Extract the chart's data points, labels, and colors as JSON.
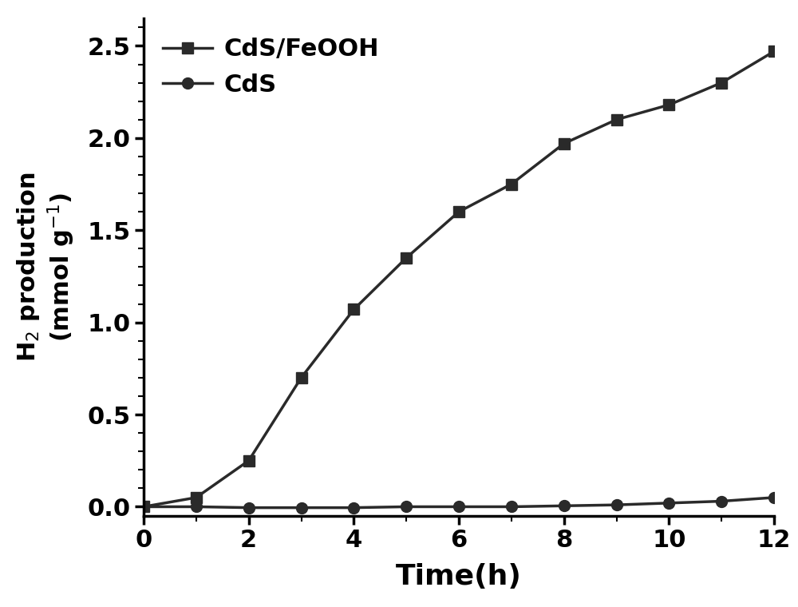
{
  "cds_feooh_x": [
    0,
    1,
    2,
    3,
    4,
    5,
    6,
    7,
    8,
    9,
    10,
    11,
    12
  ],
  "cds_feooh_y": [
    0.0,
    0.05,
    0.25,
    0.7,
    1.07,
    1.35,
    1.6,
    1.75,
    1.97,
    2.1,
    2.18,
    2.3,
    2.47
  ],
  "cds_x": [
    0,
    1,
    2,
    3,
    4,
    5,
    6,
    7,
    8,
    9,
    10,
    11,
    12
  ],
  "cds_y": [
    0.0,
    0.0,
    -0.005,
    -0.005,
    -0.005,
    0.0,
    0.0,
    0.0,
    0.005,
    0.01,
    0.02,
    0.03,
    0.05
  ],
  "line_color": "#2a2a2a",
  "xlabel": "Time(h)",
  "xlim": [
    0,
    12
  ],
  "ylim": [
    -0.05,
    2.65
  ],
  "xticks": [
    0,
    2,
    4,
    6,
    8,
    10,
    12
  ],
  "yticks": [
    0.0,
    0.5,
    1.0,
    1.5,
    2.0,
    2.5
  ],
  "legend_labels": [
    "CdS/FeOOH",
    "CdS"
  ],
  "xlabel_fontsize": 26,
  "ylabel_fontsize": 22,
  "tick_fontsize": 22,
  "legend_fontsize": 22,
  "linewidth": 2.5,
  "markersize": 10,
  "spine_linewidth": 2.5
}
